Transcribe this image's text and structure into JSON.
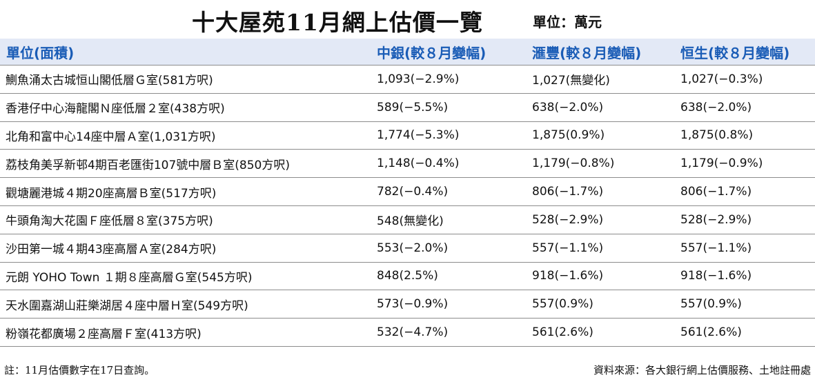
{
  "title": "十大屋苑11月網上估價一覽",
  "unit": "單位：萬元",
  "table": {
    "columns": [
      "單位(面積)",
      "中銀(較８月變幅)",
      "滙豐(較８月變幅)",
      "恒生(較８月變幅)"
    ],
    "rows": [
      [
        "鰂魚涌太古城恒山閣低層Ｇ室(581方呎)",
        "1,093(−2.9%)",
        "1,027(無變化)",
        "1,027(−0.3%)"
      ],
      [
        "香港仔中心海龍閣Ｎ座低層２室(438方呎)",
        "589(−5.5%)",
        "638(−2.0%)",
        "638(−2.0%)"
      ],
      [
        "北角和富中心14座中層Ａ室(1,031方呎)",
        "1,774(−5.3%)",
        "1,875(0.9%)",
        "1,875(0.8%)"
      ],
      [
        "荔枝角美孚新邨4期百老匯街107號中層Ｂ室(850方呎)",
        "1,148(−0.4%)",
        "1,179(−0.8%)",
        "1,179(−0.9%)"
      ],
      [
        "觀塘麗港城４期20座高層Ｂ室(517方呎)",
        "782(−0.4%)",
        "806(−1.7%)",
        "806(−1.7%)"
      ],
      [
        "牛頭角淘大花園Ｆ座低層８室(375方呎)",
        "548(無變化)",
        "528(−2.9%)",
        "528(−2.9%)"
      ],
      [
        "沙田第一城４期43座高層Ａ室(284方呎)",
        "553(−2.0%)",
        "557(−1.1%)",
        "557(−1.1%)"
      ],
      [
        "元朗 YOHO Town １期８座高層Ｇ室(545方呎)",
        "848(2.5%)",
        "918(−1.6%)",
        "918(−1.6%)"
      ],
      [
        "天水圍嘉湖山莊樂湖居４座中層Ｈ室(549方呎)",
        "573(−0.9%)",
        "557(0.9%)",
        "557(0.9%)"
      ],
      [
        "粉嶺花都廣場２座高層Ｆ室(413方呎)",
        "532(−4.7%)",
        "561(2.6%)",
        "561(2.6%)"
      ]
    ]
  },
  "footer": {
    "note": "註：11月估價數字在17日查詢。",
    "source": "資料來源：各大銀行網上估價服務、土地註冊處"
  },
  "colors": {
    "header_bg": "#e3e9f6",
    "header_text": "#1a5cb6"
  }
}
